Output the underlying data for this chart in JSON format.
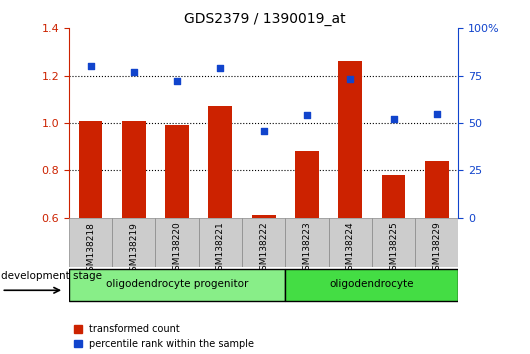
{
  "title": "GDS2379 / 1390019_at",
  "samples": [
    "GSM138218",
    "GSM138219",
    "GSM138220",
    "GSM138221",
    "GSM138222",
    "GSM138223",
    "GSM138224",
    "GSM138225",
    "GSM138229"
  ],
  "transformed_count": [
    1.01,
    1.01,
    0.99,
    1.07,
    0.61,
    0.88,
    1.26,
    0.78,
    0.84
  ],
  "percentile_rank_pct": [
    80,
    77,
    72,
    79,
    46,
    54,
    73,
    52,
    55
  ],
  "ylim_left": [
    0.6,
    1.4
  ],
  "ylim_right": [
    0,
    100
  ],
  "yticks_left": [
    0.6,
    0.8,
    1.0,
    1.2,
    1.4
  ],
  "yticks_right": [
    0,
    25,
    50,
    75,
    100
  ],
  "ytick_right_labels": [
    "0",
    "25",
    "50",
    "75",
    "100%"
  ],
  "bar_color": "#cc2200",
  "dot_color": "#1144cc",
  "bar_width": 0.55,
  "groups": [
    {
      "label": "oligodendrocyte progenitor",
      "start": 0,
      "end": 4,
      "color": "#88ee88"
    },
    {
      "label": "oligodendrocyte",
      "start": 5,
      "end": 8,
      "color": "#44dd44"
    }
  ],
  "sample_box_color": "#cccccc",
  "plot_bg_color": "#ffffff",
  "legend_items": [
    {
      "label": "transformed count",
      "color": "#cc2200"
    },
    {
      "label": "percentile rank within the sample",
      "color": "#1144cc"
    }
  ],
  "dev_stage_label": "development stage"
}
